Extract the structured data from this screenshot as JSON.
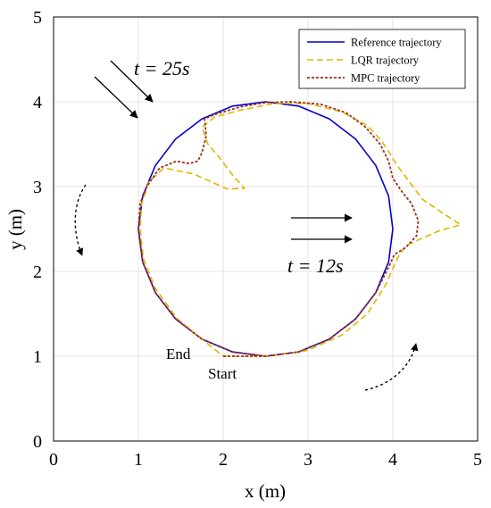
{
  "chart_data": {
    "type": "line",
    "xlabel": "x (m)",
    "ylabel": "y (m)",
    "xlim": [
      0,
      5
    ],
    "ylim": [
      0,
      5
    ],
    "xticks": [
      "0",
      "1",
      "2",
      "3",
      "4",
      "5"
    ],
    "yticks": [
      "0",
      "1",
      "2",
      "3",
      "4",
      "5"
    ],
    "grid": true,
    "legend_position": "top-right",
    "series": [
      {
        "name": "Reference trajectory",
        "color": "#0000cc",
        "style": "solid",
        "x": [
          4.0,
          3.95,
          3.799,
          3.561,
          3.25,
          2.888,
          2.5,
          2.112,
          1.75,
          1.439,
          1.201,
          1.051,
          1.0,
          1.051,
          1.201,
          1.439,
          1.75,
          2.112,
          2.5,
          2.888,
          3.25,
          3.561,
          3.799,
          3.95,
          4.0
        ],
        "y": [
          2.5,
          2.888,
          3.25,
          3.561,
          3.799,
          3.949,
          4.0,
          3.949,
          3.799,
          3.561,
          3.25,
          2.888,
          2.5,
          2.112,
          1.75,
          1.439,
          1.201,
          1.051,
          1.0,
          1.051,
          1.201,
          1.439,
          1.75,
          2.112,
          2.5
        ]
      },
      {
        "name": "LQR trajectory",
        "color": "#e0b800",
        "style": "dashed",
        "x": [
          2.0,
          2.3,
          2.6,
          3.0,
          3.4,
          3.7,
          3.92,
          4.05,
          4.15,
          4.32,
          4.55,
          4.8,
          4.6,
          4.35,
          4.2,
          4.05,
          3.96,
          3.86,
          3.7,
          3.4,
          3.0,
          2.6,
          2.2,
          1.9,
          1.75,
          1.82,
          1.95,
          2.1,
          2.25,
          2.05,
          1.65,
          1.3,
          1.12,
          1.04,
          1.02,
          1.06,
          1.2,
          1.45,
          1.75,
          2.0
        ],
        "y": [
          1.0,
          1.0,
          1.01,
          1.07,
          1.25,
          1.5,
          1.85,
          2.15,
          2.3,
          2.38,
          2.48,
          2.55,
          2.68,
          2.85,
          3.05,
          3.25,
          3.4,
          3.55,
          3.72,
          3.88,
          3.98,
          3.98,
          3.9,
          3.82,
          3.7,
          3.5,
          3.35,
          3.15,
          2.98,
          2.97,
          3.15,
          3.22,
          3.05,
          2.8,
          2.5,
          2.15,
          1.8,
          1.45,
          1.2,
          1.0
        ]
      },
      {
        "name": "MPC trajectory",
        "color": "#a0301a",
        "style": "dotted",
        "x": [
          2.0,
          2.5,
          2.888,
          3.25,
          3.561,
          3.799,
          3.95,
          4.02,
          4.15,
          4.28,
          4.3,
          4.22,
          4.1,
          4.0,
          3.95,
          3.85,
          3.68,
          3.45,
          3.15,
          2.8,
          2.5,
          2.2,
          1.9,
          1.78,
          1.8,
          1.75,
          1.7,
          1.6,
          1.45,
          1.25,
          1.1,
          1.02,
          1.0,
          1.051,
          1.201,
          1.439,
          1.75,
          2.112,
          2.5
        ],
        "y": [
          1.0,
          1.0,
          1.051,
          1.201,
          1.439,
          1.75,
          2.05,
          2.2,
          2.28,
          2.42,
          2.6,
          2.8,
          2.95,
          3.1,
          3.3,
          3.5,
          3.7,
          3.87,
          3.97,
          4.0,
          3.99,
          3.94,
          3.85,
          3.8,
          3.6,
          3.4,
          3.3,
          3.27,
          3.3,
          3.22,
          3.0,
          2.8,
          2.5,
          2.112,
          1.75,
          1.439,
          1.201,
          1.051,
          1.0
        ]
      }
    ],
    "annotations": {
      "t25": "t = 25s",
      "t12": "t = 12s",
      "end": "End",
      "start": "Start"
    }
  }
}
